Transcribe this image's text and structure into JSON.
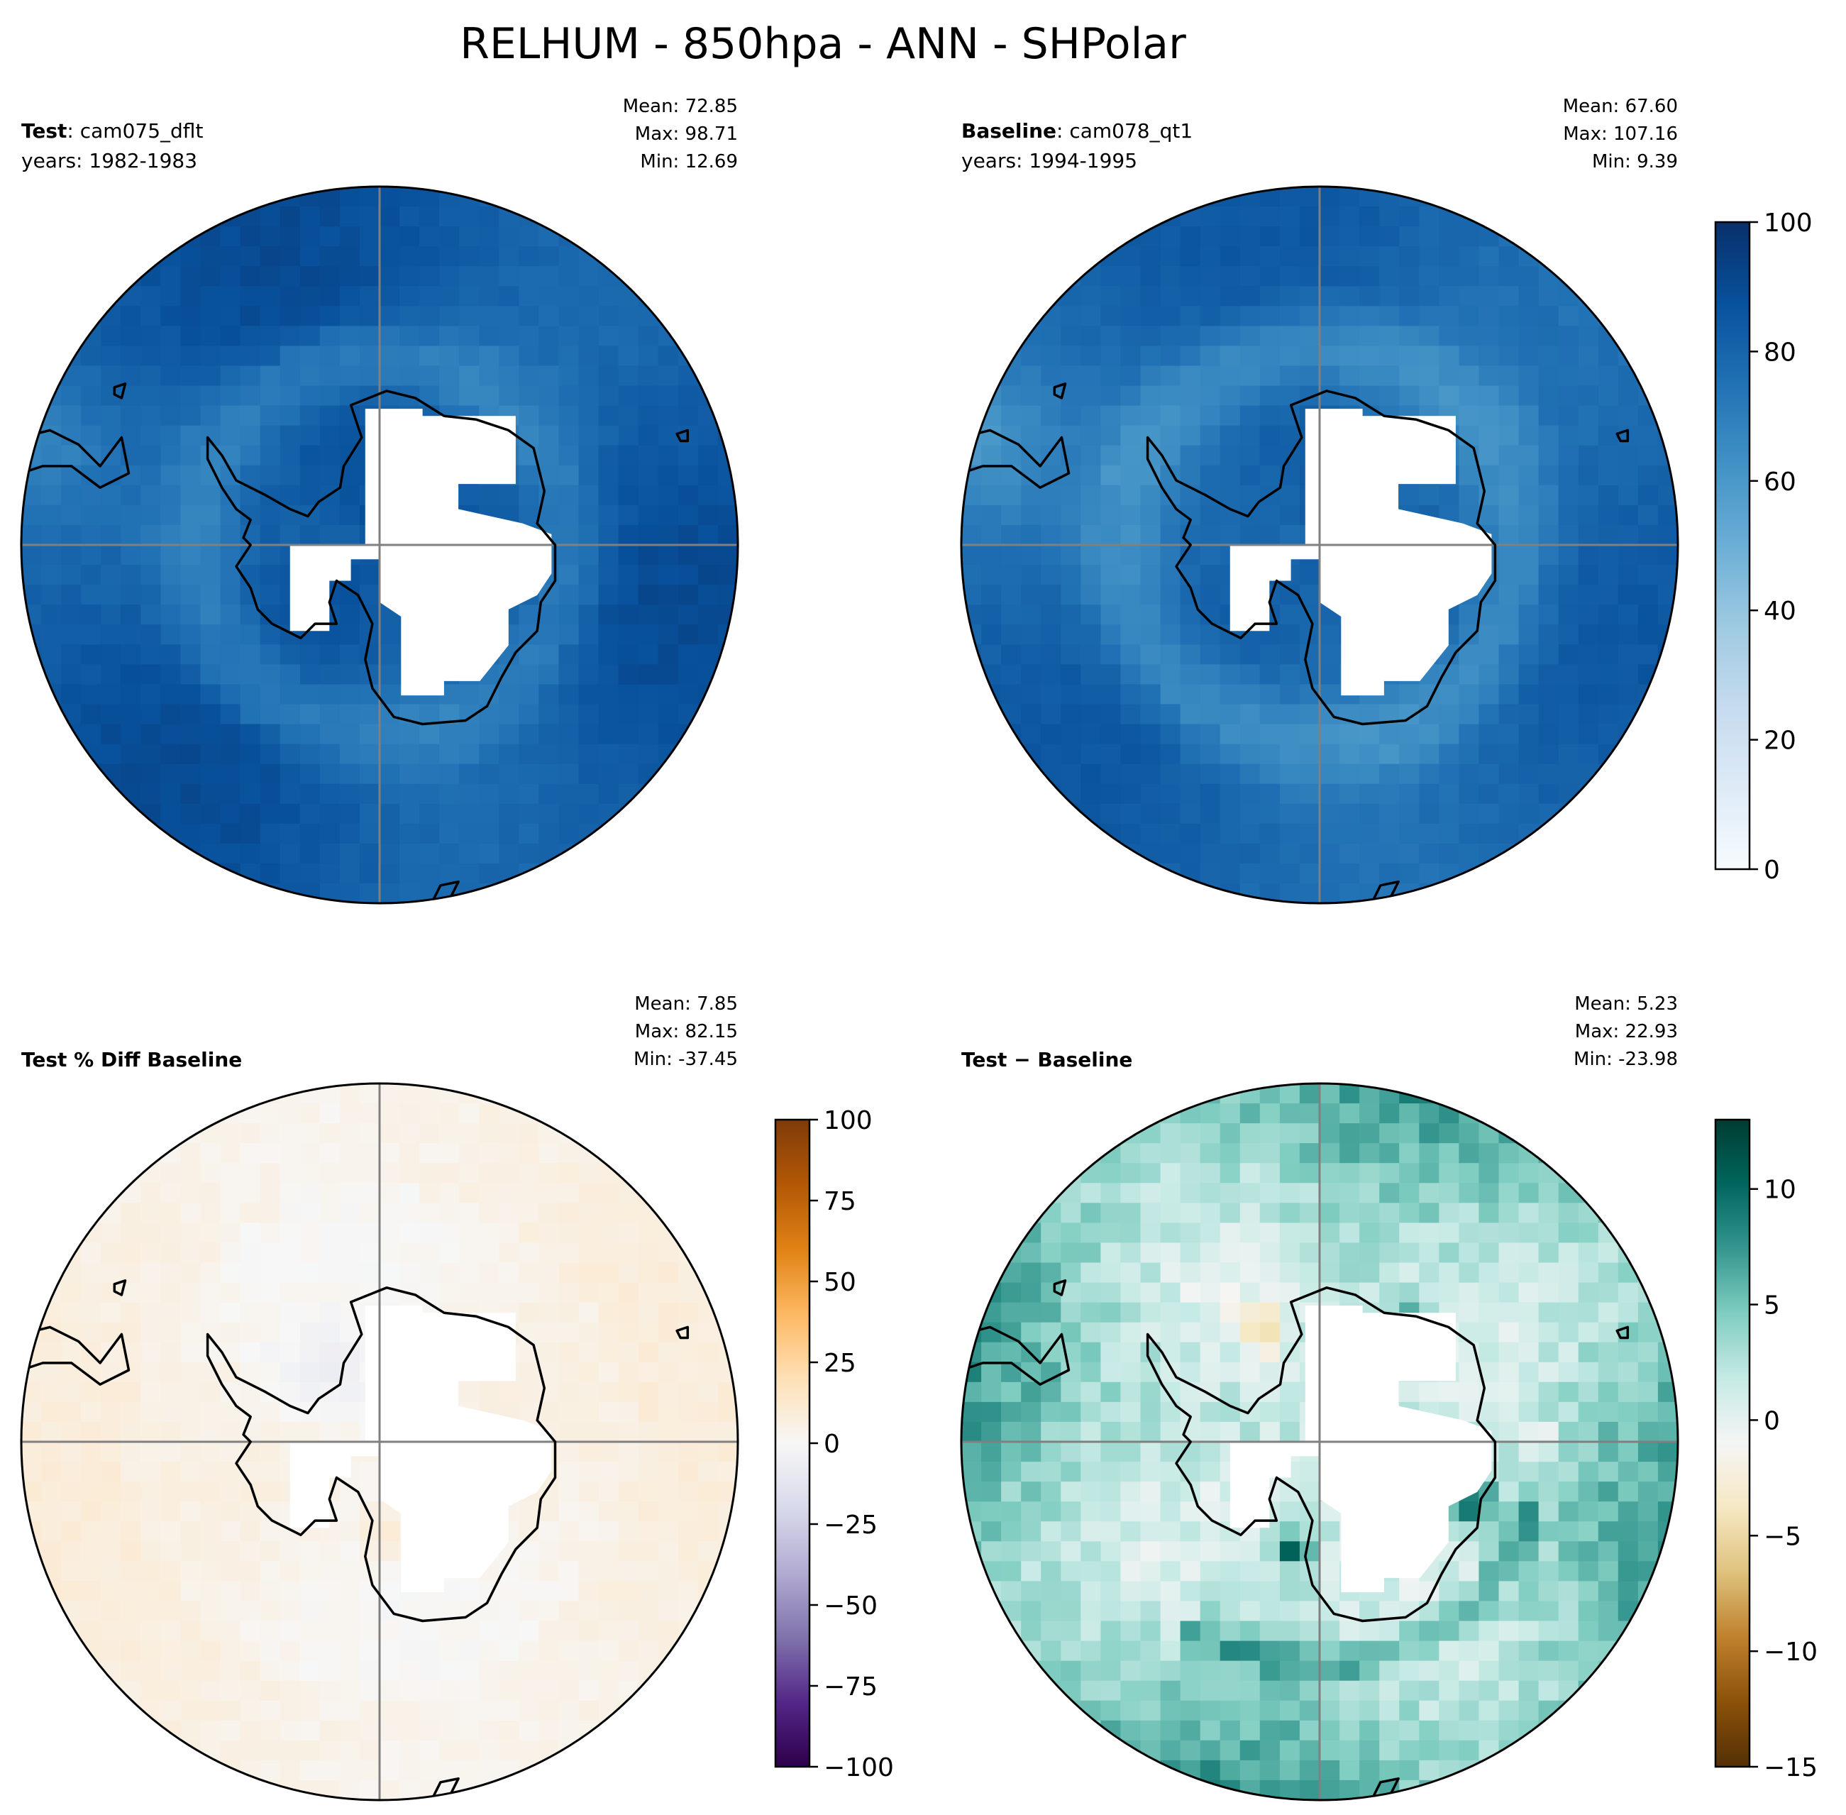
{
  "figure": {
    "title": "RELHUM - 850hpa - ANN - SHPolar"
  },
  "panels": [
    {
      "kind": "test",
      "label_bold": "Test",
      "label_rest": ": cam075_dflt",
      "years": "years: 1982-1983",
      "stats": [
        "Mean: 72.85",
        "Max: 98.71",
        "Min: 12.69"
      ]
    },
    {
      "kind": "baseline",
      "label_bold": "Baseline",
      "label_rest": ": cam078_qt1",
      "years": "years: 1994-1995",
      "stats": [
        "Mean: 67.60",
        "Max: 107.16",
        "Min:  9.39"
      ]
    },
    {
      "kind": "pctdiff",
      "label_bold": "Test % Diff Baseline",
      "label_rest": "",
      "years": "",
      "stats": [
        "Mean:  7.85",
        "Max: 82.15",
        "Min: -37.45"
      ]
    },
    {
      "kind": "diff",
      "label_bold": "Test − Baseline",
      "label_rest": "",
      "years": "",
      "stats": [
        "Mean:  5.23",
        "Max: 22.93",
        "Min: -23.98"
      ]
    }
  ],
  "colorbars": [
    {
      "for": "test-baseline",
      "range": [
        0,
        100
      ],
      "ticks": [
        "0",
        "20",
        "40",
        "60",
        "80",
        "100"
      ],
      "colors": [
        "#f7fbff",
        "#deebf7",
        "#c6dbef",
        "#9ecae1",
        "#6baed6",
        "#4292c6",
        "#2171b5",
        "#08519c",
        "#08306b"
      ]
    },
    {
      "for": "pctdiff",
      "range": [
        -100,
        100
      ],
      "ticks": [
        "−100",
        "−75",
        "−50",
        "−25",
        "0",
        "25",
        "50",
        "75",
        "100"
      ],
      "colors": [
        "#2d004b",
        "#542788",
        "#8073ac",
        "#b2abd2",
        "#d8daeb",
        "#f7f7f7",
        "#fee0b6",
        "#fdb863",
        "#e08214",
        "#b35806",
        "#7f3b08"
      ]
    },
    {
      "for": "diff",
      "range": [
        -15,
        13
      ],
      "ticks": [
        "−15",
        "−10",
        "−5",
        "0",
        "5",
        "10"
      ],
      "colors": [
        "#543005",
        "#8c510a",
        "#bf812d",
        "#dfc27d",
        "#f6e8c3",
        "#f5f5f5",
        "#c7eae5",
        "#80cdc1",
        "#35978f",
        "#01665e",
        "#003c30"
      ]
    }
  ]
}
